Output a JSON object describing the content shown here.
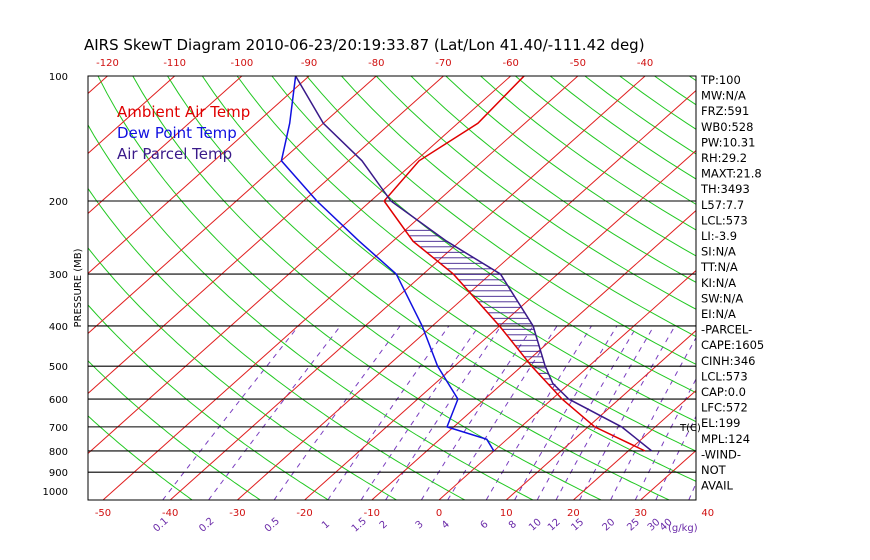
{
  "chart_data": {
    "type": "line",
    "title": "AIRS SkewT Diagram 2010-06-23/20:19:33.87 (Lat/Lon 41.40/-111.42 deg)",
    "ylabel": "PRESSURE (MB)",
    "y_scale": "log",
    "ylim": [
      1050,
      100
    ],
    "top_xlabels": [
      "-120",
      "-110",
      "-100",
      "-90",
      "-80",
      "-70",
      "-60",
      "-50",
      "-40"
    ],
    "bottom_xlabels": [
      "-50",
      "-40",
      "-30",
      "-20",
      "-10",
      "0",
      "10",
      "20",
      "30",
      "40"
    ],
    "bottom_unit_label": "T(C)",
    "pressure_tick_labels": [
      "100",
      "200",
      "300",
      "400",
      "500",
      "600",
      "700",
      "800",
      "900",
      "1000"
    ],
    "mixing_ratio_labels": [
      "0.1",
      "0.2",
      "0.5",
      "1",
      "1.5",
      "2",
      "3",
      "4",
      "6",
      "8",
      "10",
      "12",
      "15",
      "20",
      "25",
      "30",
      "40"
    ],
    "mixing_ratio_unit": "(g/kg)",
    "legend": [
      {
        "label": "Ambient Air Temp",
        "color": "#e00000"
      },
      {
        "label": "Dew Point Temp",
        "color": "#1010e0"
      },
      {
        "label": "Air Parcel Temp",
        "color": "#3a1a8a"
      }
    ],
    "series": [
      {
        "name": "Ambient Air Temp",
        "color": "#e00000",
        "points": [
          [
            800,
            22.5
          ],
          [
            700,
            11
          ],
          [
            600,
            1.5
          ],
          [
            500,
            -8.5
          ],
          [
            400,
            -20
          ],
          [
            300,
            -35.5
          ],
          [
            250,
            -47
          ],
          [
            200,
            -58
          ],
          [
            160,
            -59.5
          ],
          [
            130,
            -57
          ],
          [
            100,
            -58
          ]
        ]
      },
      {
        "name": "Dew Point Temp",
        "color": "#1010e0",
        "points": [
          [
            800,
            0
          ],
          [
            750,
            -3
          ],
          [
            700,
            -11
          ],
          [
            600,
            -14
          ],
          [
            500,
            -22.5
          ],
          [
            400,
            -31.5
          ],
          [
            300,
            -44
          ],
          [
            250,
            -55
          ],
          [
            200,
            -68
          ],
          [
            160,
            -80
          ],
          [
            130,
            -85
          ],
          [
            100,
            -92
          ]
        ]
      },
      {
        "name": "Air Parcel Temp",
        "color": "#3a1a8a",
        "points": [
          [
            800,
            23.5
          ],
          [
            700,
            15
          ],
          [
            600,
            2.5
          ],
          [
            550,
            -2.5
          ],
          [
            500,
            -6.5
          ],
          [
            400,
            -15
          ],
          [
            300,
            -28.5
          ],
          [
            250,
            -42
          ],
          [
            200,
            -57
          ],
          [
            160,
            -68
          ],
          [
            130,
            -80
          ],
          [
            100,
            -92
          ]
        ]
      }
    ],
    "cape_shading": {
      "color": "#3a1a8a",
      "from_p": 570,
      "to_p": 230
    }
  },
  "indices": [
    "TP:100",
    "MW:N/A",
    "FRZ:591",
    "WB0:528",
    "PW:10.31",
    "RH:29.2",
    "MAXT:21.8",
    "TH:3493",
    "L57:7.7",
    "LCL:573",
    "LI:-3.9",
    "SI:N/A",
    "TT:N/A",
    "KI:N/A",
    "SW:N/A",
    "EI:N/A",
    "-PARCEL-",
    "CAPE:1605",
    "CINH:346",
    "LCL:573",
    "CAP:0.0",
    "LFC:572",
    "EL:199",
    "MPL:124",
    "-WIND-",
    "NOT",
    "AVAIL"
  ]
}
